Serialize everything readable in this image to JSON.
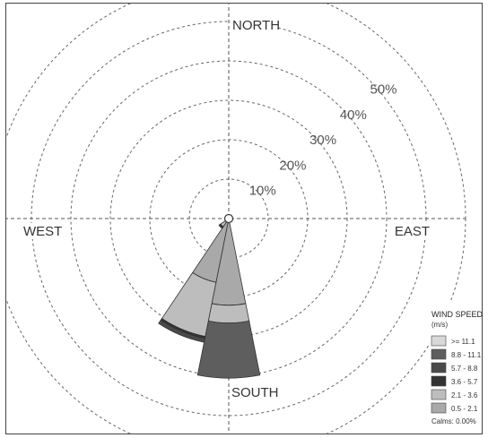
{
  "chart_data": {
    "type": "windrose",
    "direction_labels": [
      "NORTH",
      "EAST",
      "SOUTH",
      "WEST"
    ],
    "radial_ticks": [
      10,
      20,
      30,
      40,
      50
    ],
    "radial_tick_labels": [
      "10%",
      "20%",
      "30%",
      "40%",
      "50%"
    ],
    "radial_max": 60,
    "sectors": [
      {
        "direction_deg": 180,
        "cumulative_pct": [
          0,
          22,
          26.5,
          26.5,
          26.5,
          40.5
        ],
        "colors_order": "calm-to-fast"
      },
      {
        "direction_deg": 202.5,
        "cumulative_pct": [
          0,
          16.5,
          30.5,
          31,
          32,
          32
        ],
        "colors_order": "calm-to-fast"
      },
      {
        "direction_deg": 225,
        "cumulative_pct": [
          0,
          0.5,
          2.5,
          3,
          3,
          3
        ]
      }
    ],
    "legend": {
      "title": "WIND SPEED",
      "unit": "(m/s)",
      "bins": [
        ">= 11.1",
        "8.8 - 11.1",
        "5.7 - 8.8",
        "3.6 - 5.7",
        "2.1 - 3.6",
        "0.5 - 2.1"
      ],
      "colors": [
        "#d8d8d8",
        "#5e5e5e",
        "#4a4a4a",
        "#333333",
        "#bdbdbd",
        "#a9a9a9"
      ],
      "calms": "Calms: 0.00%"
    },
    "bin_colors_inner_to_outer": [
      "#a9a9a9",
      "#bdbdbd",
      "#333333",
      "#4a4a4a",
      "#5e5e5e",
      "#d8d8d8"
    ],
    "grid": true
  }
}
